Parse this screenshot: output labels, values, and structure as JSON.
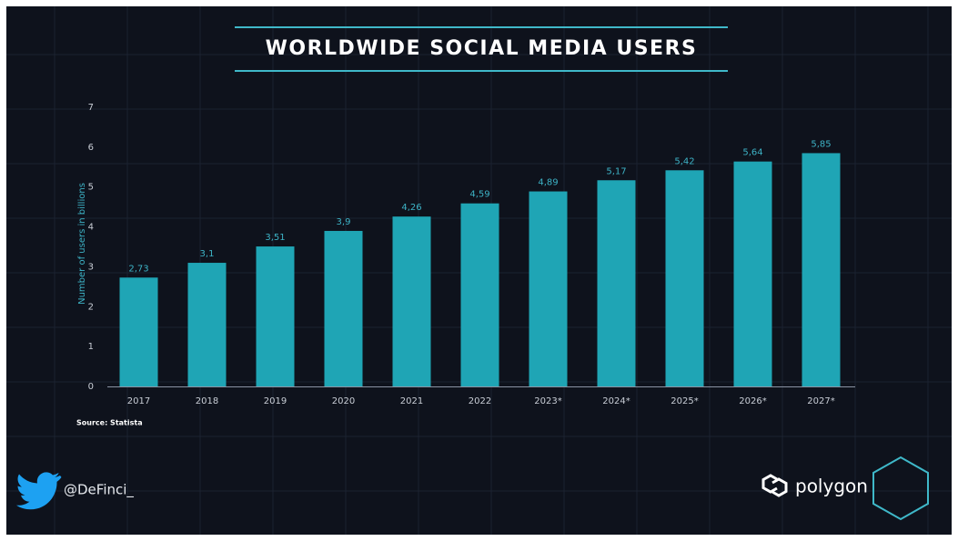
{
  "chart_data": {
    "type": "bar",
    "title": "WORLDWIDE SOCIAL MEDIA USERS",
    "y_label": "Number of users in billions",
    "categories": [
      "2017",
      "2018",
      "2019",
      "2020",
      "2021",
      "2022",
      "2023*",
      "2024*",
      "2025*",
      "2026*",
      "2027*"
    ],
    "values": [
      2.73,
      3.1,
      3.51,
      3.9,
      4.26,
      4.59,
      4.89,
      5.17,
      5.42,
      5.64,
      5.85
    ],
    "value_labels": [
      "2,73",
      "3,1",
      "3,51",
      "3,9",
      "4,26",
      "4,59",
      "4,89",
      "5,17",
      "5,42",
      "5,64",
      "5,85"
    ],
    "color": "#1fa5b5",
    "ylim": [
      0,
      7
    ],
    "yticks": [
      0,
      1,
      2,
      3,
      4,
      5,
      6,
      7
    ],
    "grid": false,
    "source": "Source: Statista",
    "handle": "@DeFinci_",
    "brand": "polygon"
  }
}
